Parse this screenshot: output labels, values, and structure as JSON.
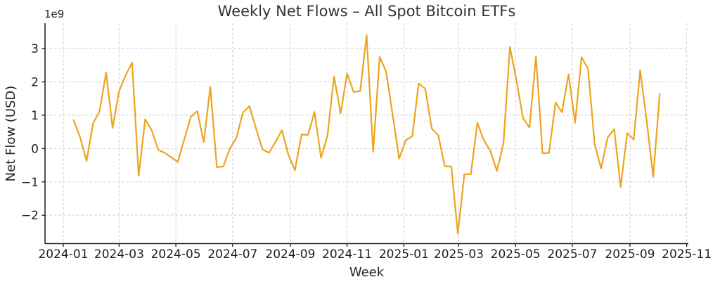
{
  "chart_data": {
    "type": "line",
    "title": "Weekly Net Flows – All Spot Bitcoin ETFs",
    "xlabel": "Week",
    "ylabel": "Net Flow (USD)",
    "y_scale_offset_text": "1e9",
    "grid": true,
    "legend": false,
    "ylim": [
      -2.85,
      3.76
    ],
    "x_tick_labels": [
      "2024-01",
      "2024-03",
      "2024-05",
      "2024-07",
      "2024-09",
      "2024-11",
      "2025-01",
      "2025-03",
      "2025-05",
      "2025-07",
      "2025-09",
      "2025-11"
    ],
    "y_tick_values": [
      3,
      2,
      1,
      0,
      -1,
      -2
    ],
    "y_tick_labels": [
      "3",
      "2",
      "1",
      "0",
      "−1",
      "−2"
    ],
    "line_color": "#eda41c",
    "weeks": [
      "2024-01-12",
      "2024-01-19",
      "2024-01-26",
      "2024-02-02",
      "2024-02-09",
      "2024-02-16",
      "2024-02-23",
      "2024-03-01",
      "2024-03-08",
      "2024-03-15",
      "2024-03-22",
      "2024-03-29",
      "2024-04-05",
      "2024-04-12",
      "2024-04-19",
      "2024-04-26",
      "2024-05-03",
      "2024-05-10",
      "2024-05-17",
      "2024-05-24",
      "2024-05-31",
      "2024-06-07",
      "2024-06-14",
      "2024-06-21",
      "2024-06-28",
      "2024-07-05",
      "2024-07-12",
      "2024-07-19",
      "2024-07-26",
      "2024-08-02",
      "2024-08-09",
      "2024-08-16",
      "2024-08-23",
      "2024-08-30",
      "2024-09-06",
      "2024-09-13",
      "2024-09-20",
      "2024-09-27",
      "2024-10-04",
      "2024-10-11",
      "2024-10-18",
      "2024-10-25",
      "2024-11-01",
      "2024-11-08",
      "2024-11-15",
      "2024-11-22",
      "2024-11-29",
      "2024-12-06",
      "2024-12-13",
      "2024-12-20",
      "2024-12-27",
      "2025-01-03",
      "2025-01-10",
      "2025-01-17",
      "2025-01-24",
      "2025-01-31",
      "2025-02-07",
      "2025-02-14",
      "2025-02-21",
      "2025-02-28",
      "2025-03-07",
      "2025-03-14",
      "2025-03-21",
      "2025-03-28",
      "2025-04-04",
      "2025-04-11",
      "2025-04-18",
      "2025-04-25",
      "2025-05-02",
      "2025-05-09",
      "2025-05-16",
      "2025-05-23",
      "2025-05-30",
      "2025-06-06",
      "2025-06-13",
      "2025-06-20",
      "2025-06-27",
      "2025-07-04",
      "2025-07-11",
      "2025-07-18",
      "2025-07-25",
      "2025-08-01",
      "2025-08-08",
      "2025-08-15",
      "2025-08-22",
      "2025-08-29",
      "2025-09-05",
      "2025-09-12",
      "2025-09-19",
      "2025-09-26",
      "2025-10-03"
    ],
    "values_1e9_usd": [
      0.85,
      0.35,
      -0.37,
      0.75,
      1.12,
      2.28,
      0.62,
      1.72,
      2.2,
      2.58,
      -0.82,
      0.88,
      0.55,
      -0.04,
      -0.13,
      -0.26,
      -0.4,
      0.27,
      0.95,
      1.12,
      0.19,
      1.85,
      -0.56,
      -0.54,
      0.0,
      0.32,
      1.08,
      1.27,
      0.62,
      -0.02,
      -0.13,
      0.2,
      0.55,
      -0.2,
      -0.65,
      0.42,
      0.41,
      1.1,
      -0.28,
      0.4,
      2.16,
      1.05,
      2.25,
      1.7,
      1.72,
      3.4,
      -0.1,
      2.75,
      2.3,
      1.0,
      -0.3,
      0.25,
      0.37,
      1.95,
      1.8,
      0.6,
      0.4,
      -0.53,
      -0.54,
      -2.55,
      -0.77,
      -0.77,
      0.77,
      0.25,
      -0.07,
      -0.67,
      0.15,
      3.05,
      2.05,
      0.92,
      0.63,
      2.76,
      -0.14,
      -0.13,
      1.38,
      1.09,
      2.23,
      0.77,
      2.74,
      2.39,
      0.14,
      -0.6,
      0.33,
      0.58,
      -1.15,
      0.46,
      0.27,
      2.35,
      0.82,
      -0.85,
      1.65
    ]
  },
  "colors": {
    "line": "#eda41c",
    "grid": "#cccccc",
    "spine": "#262626",
    "text": "#1f1f1f",
    "background": "#ffffff"
  }
}
